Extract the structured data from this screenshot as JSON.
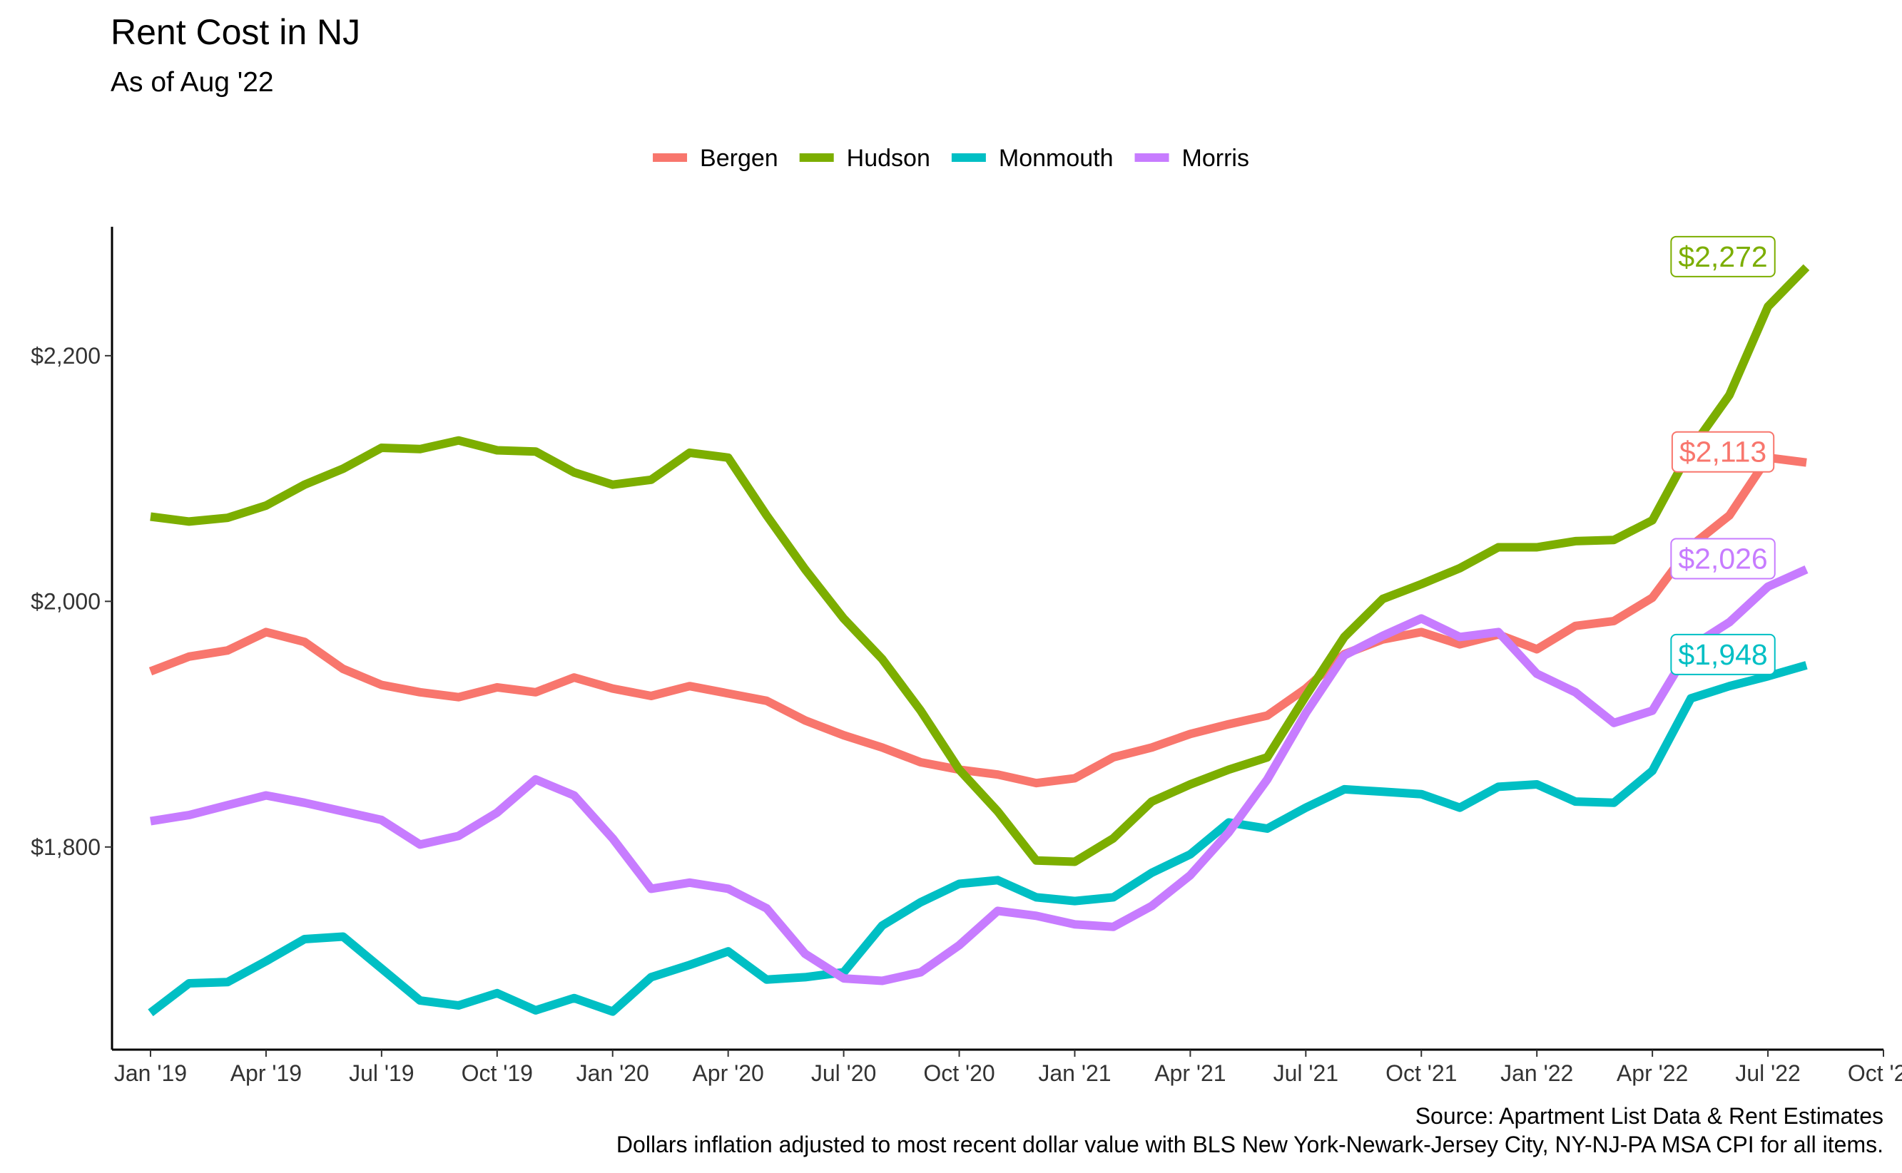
{
  "chart_data": {
    "type": "line",
    "title": "Rent Cost in NJ",
    "subtitle": "As of Aug '22",
    "xlabel": "",
    "ylabel": "",
    "caption": [
      "Source: Apartment List Data & Rent Estimates",
      "Dollars inflation adjusted to most recent dollar value with BLS New York-Newark-Jersey City, NY-NJ-PA MSA CPI for all items."
    ],
    "x_start": "2019-01",
    "x_tick_labels": [
      "Jan '19",
      "Apr '19",
      "Jul '19",
      "Oct '19",
      "Jan '20",
      "Apr '20",
      "Jul '20",
      "Oct '20",
      "Jan '21",
      "Apr '21",
      "Jul '21",
      "Oct '21",
      "Jan '22",
      "Apr '22",
      "Jul '22",
      "Oct '22"
    ],
    "xlim": [
      "2018-12",
      "2022-10"
    ],
    "y_ticks": [
      1800,
      2000,
      2200
    ],
    "y_tick_labels": [
      "$1,800",
      "$2,000",
      "$2,200"
    ],
    "ylim": [
      1635,
      2305
    ],
    "grid": false,
    "legend_position": "top",
    "series": [
      {
        "name": "Bergen",
        "color": "#F8766D",
        "end_label": "$2,113",
        "values": [
          1943,
          1955,
          1960,
          1975,
          1967,
          1945,
          1932,
          1926,
          1922,
          1930,
          1926,
          1938,
          1929,
          1923,
          1931,
          1925,
          1919,
          1903,
          1891,
          1881,
          1869,
          1863,
          1859,
          1852,
          1856,
          1873,
          1881,
          1892,
          1900,
          1907,
          1929,
          1957,
          1969,
          1975,
          1965,
          1973,
          1961,
          1980,
          1984,
          2003,
          2045,
          2070,
          2117,
          2113
        ]
      },
      {
        "name": "Hudson",
        "color": "#7CAE00",
        "end_label": "$2,272",
        "values": [
          2069,
          2065,
          2068,
          2078,
          2095,
          2108,
          2125,
          2124,
          2131,
          2123,
          2122,
          2105,
          2095,
          2099,
          2121,
          2117,
          2070,
          2026,
          1986,
          1953,
          1911,
          1863,
          1829,
          1789,
          1788,
          1807,
          1837,
          1851,
          1863,
          1873,
          1923,
          1971,
          2002,
          2014,
          2027,
          2044,
          2044,
          2049,
          2050,
          2066,
          2124,
          2168,
          2240,
          2272
        ]
      },
      {
        "name": "Monmouth",
        "color": "#00BFC4",
        "end_label": "$1,948",
        "values": [
          1665,
          1689,
          1690,
          1707,
          1725,
          1727,
          1701,
          1675,
          1671,
          1681,
          1667,
          1677,
          1666,
          1694,
          1704,
          1715,
          1692,
          1694,
          1698,
          1736,
          1755,
          1770,
          1773,
          1759,
          1756,
          1759,
          1779,
          1794,
          1820,
          1815,
          1832,
          1847,
          1845,
          1843,
          1832,
          1849,
          1851,
          1837,
          1836,
          1862,
          1921,
          1931,
          1939,
          1948
        ]
      },
      {
        "name": "Morris",
        "color": "#C77CFF",
        "end_label": "$2,026",
        "values": [
          1821,
          1826,
          1834,
          1842,
          1836,
          1829,
          1822,
          1802,
          1809,
          1828,
          1855,
          1842,
          1807,
          1766,
          1771,
          1766,
          1750,
          1713,
          1693,
          1691,
          1698,
          1720,
          1748,
          1744,
          1737,
          1735,
          1752,
          1777,
          1812,
          1855,
          1909,
          1956,
          1972,
          1986,
          1971,
          1975,
          1941,
          1926,
          1901,
          1911,
          1963,
          1983,
          2012,
          2026
        ]
      }
    ]
  }
}
